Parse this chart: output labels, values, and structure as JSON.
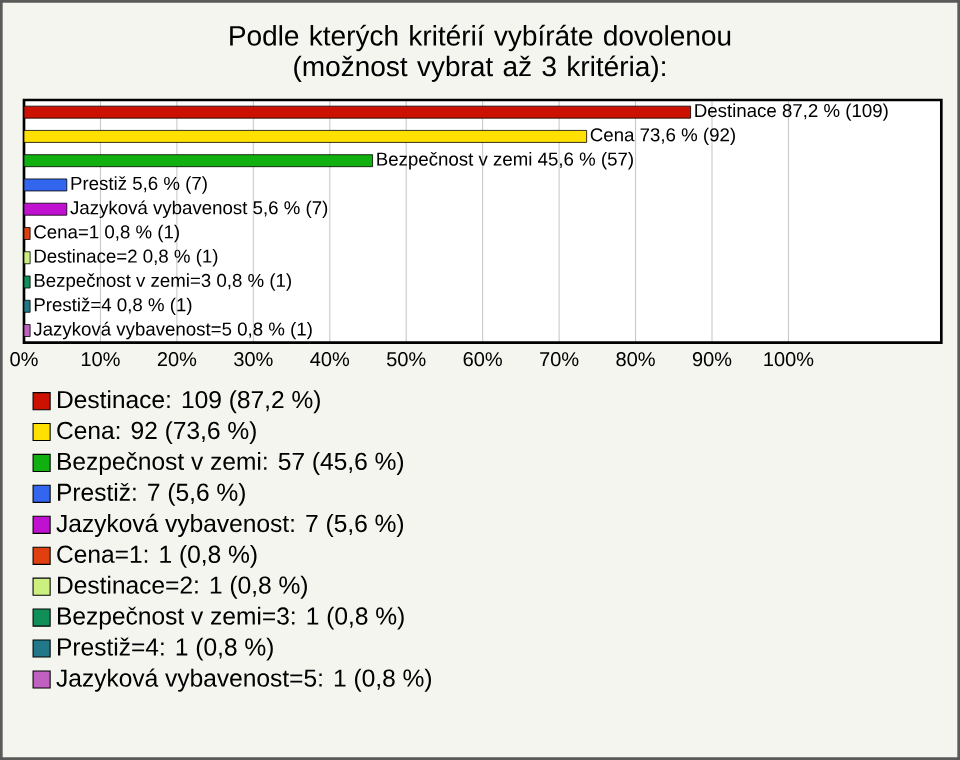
{
  "chart_data": {
    "type": "bar",
    "orientation": "horizontal",
    "title": "Podle kterých kritérií vybíráte dovolenou (možnost vybrat až 3 kritéria):",
    "categories": [
      null,
      null,
      null,
      null,
      null,
      null,
      null,
      null,
      null,
      null
    ],
    "series": [
      {
        "name": "Destinace: 109 (87,2 %)",
        "color": "#cc1100",
        "values": [
          87.2,
          null,
          null,
          null,
          null,
          null,
          null,
          null,
          null,
          null
        ],
        "value_labels": [
          "Destinace 87,2 % (109)",
          null,
          null,
          null,
          null,
          null,
          null,
          null,
          null,
          null
        ]
      },
      {
        "name": "Cena: 92 (73,6 %)",
        "color": "#ffe000",
        "values": [
          null,
          73.6,
          null,
          null,
          null,
          null,
          null,
          null,
          null,
          null
        ],
        "value_labels": [
          null,
          "Cena 73,6 % (92)",
          null,
          null,
          null,
          null,
          null,
          null,
          null,
          null
        ]
      },
      {
        "name": "Bezpečnost v zemi: 57 (45,6 %)",
        "color": "#10b010",
        "values": [
          null,
          null,
          45.6,
          null,
          null,
          null,
          null,
          null,
          null,
          null
        ],
        "value_labels": [
          null,
          null,
          "Bezpečnost v zemi 45,6 % (57)",
          null,
          null,
          null,
          null,
          null,
          null,
          null
        ]
      },
      {
        "name": "Prestiž: 7 (5,6 %)",
        "color": "#3366ee",
        "values": [
          null,
          null,
          null,
          5.6,
          null,
          null,
          null,
          null,
          null,
          null
        ],
        "value_labels": [
          null,
          null,
          null,
          "Prestiž 5,6 % (7)",
          null,
          null,
          null,
          null,
          null,
          null
        ]
      },
      {
        "name": "Jazyková vybavenost: 7 (5,6 %)",
        "color": "#c010d0",
        "values": [
          null,
          null,
          null,
          null,
          5.6,
          null,
          null,
          null,
          null,
          null
        ],
        "value_labels": [
          null,
          null,
          null,
          null,
          "Jazyková vybavenost 5,6 % (7)",
          null,
          null,
          null,
          null,
          null
        ]
      },
      {
        "name": "Cena=1: 1 (0,8 %)",
        "color": "#e04010",
        "values": [
          null,
          null,
          null,
          null,
          null,
          0.8,
          null,
          null,
          null,
          null
        ],
        "value_labels": [
          null,
          null,
          null,
          null,
          null,
          "Cena=1 0,8 % (1)",
          null,
          null,
          null,
          null
        ]
      },
      {
        "name": "Destinace=2: 1 (0,8 %)",
        "color": "#ccf080",
        "values": [
          null,
          null,
          null,
          null,
          null,
          null,
          0.8,
          null,
          null,
          null
        ],
        "value_labels": [
          null,
          null,
          null,
          null,
          null,
          null,
          "Destinace=2 0,8 % (1)",
          null,
          null,
          null
        ]
      },
      {
        "name": "Bezpečnost v zemi=3: 1 (0,8 %)",
        "color": "#109058",
        "values": [
          null,
          null,
          null,
          null,
          null,
          null,
          null,
          0.8,
          null,
          null
        ],
        "value_labels": [
          null,
          null,
          null,
          null,
          null,
          null,
          null,
          "Bezpečnost v zemi=3 0,8 % (1)",
          null,
          null
        ]
      },
      {
        "name": "Prestiž=4: 1 (0,8 %)",
        "color": "#207888",
        "values": [
          null,
          null,
          null,
          null,
          null,
          null,
          null,
          null,
          0.8,
          null
        ],
        "value_labels": [
          null,
          null,
          null,
          null,
          null,
          null,
          null,
          null,
          "Prestiž=4 0,8 % (1)",
          null
        ]
      },
      {
        "name": "Jazyková vybavenost=5: 1 (0,8 %)",
        "color": "#c060c0",
        "values": [
          null,
          null,
          null,
          null,
          null,
          null,
          null,
          null,
          null,
          0.8
        ],
        "value_labels": [
          null,
          null,
          null,
          null,
          null,
          null,
          null,
          null,
          null,
          "Jazyková vybavenost=5 0,8 % (1)"
        ]
      }
    ],
    "xlim": [
      0,
      120
    ],
    "xticks": [
      {
        "value": 0,
        "label": "0%"
      },
      {
        "value": 10,
        "label": "10%"
      },
      {
        "value": 20,
        "label": "20%"
      },
      {
        "value": 30,
        "label": "30%"
      },
      {
        "value": 40,
        "label": "40%"
      },
      {
        "value": 50,
        "label": "50%"
      },
      {
        "value": 60,
        "label": "60%"
      },
      {
        "value": 70,
        "label": "70%"
      },
      {
        "value": 80,
        "label": "80%"
      },
      {
        "value": 90,
        "label": "90%"
      },
      {
        "value": 100,
        "label": "100%"
      }
    ],
    "grid": "x",
    "legend": "bottom",
    "tick_labels": "x"
  }
}
